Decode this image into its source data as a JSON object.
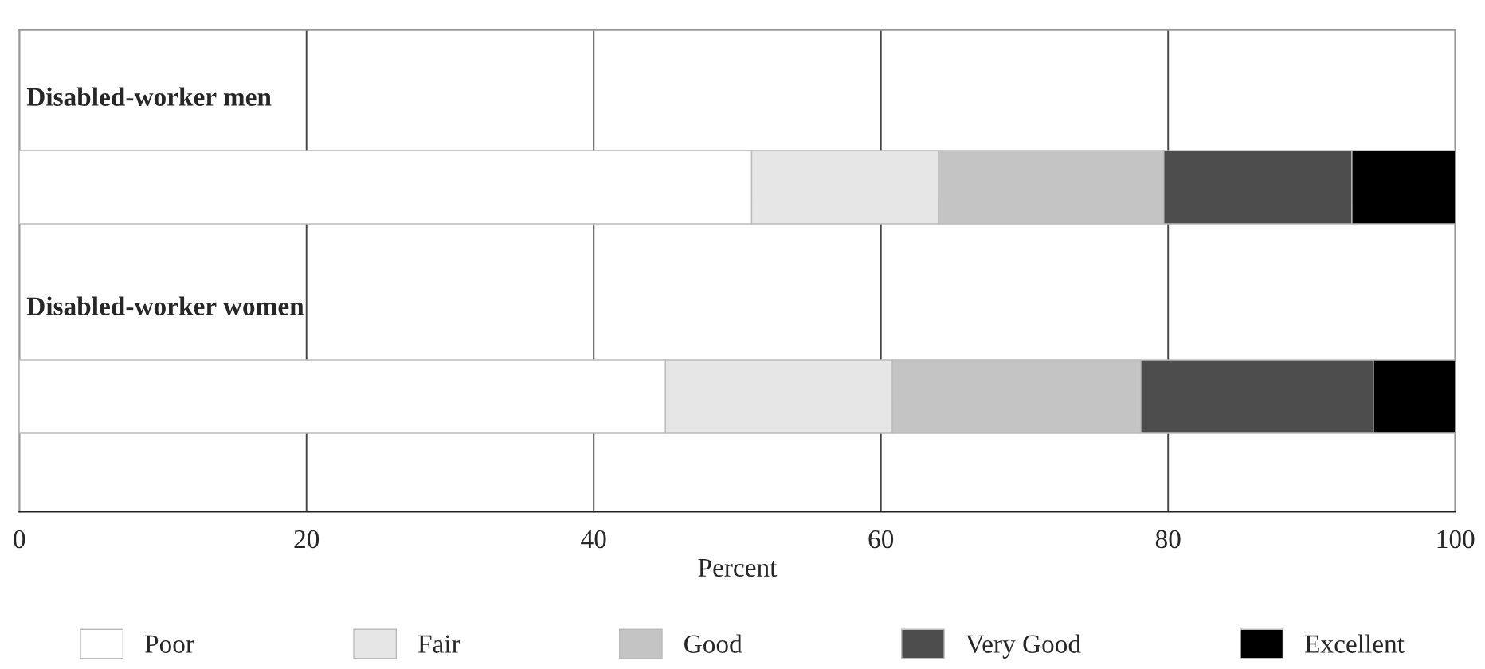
{
  "chart_data": {
    "type": "bar",
    "orientation": "horizontal",
    "stacked": true,
    "categories": [
      "Disabled-worker men",
      "Disabled-worker women"
    ],
    "series": [
      {
        "name": "Poor",
        "color": "#ffffff",
        "values": [
          51,
          45
        ]
      },
      {
        "name": "Fair",
        "color": "#e6e6e6",
        "values": [
          13,
          15.8
        ]
      },
      {
        "name": "Good",
        "color": "#c4c4c4",
        "values": [
          15.7,
          17.3
        ]
      },
      {
        "name": "Very Good",
        "color": "#4d4d4d",
        "values": [
          13.1,
          16.2
        ]
      },
      {
        "name": "Excellent",
        "color": "#000000",
        "values": [
          7.2,
          5.7
        ]
      }
    ],
    "xlabel": "Percent",
    "xlim": [
      0,
      100
    ],
    "xticks": [
      0,
      20,
      40,
      60,
      80,
      100
    ],
    "grid": "x",
    "legend": "bottom"
  }
}
